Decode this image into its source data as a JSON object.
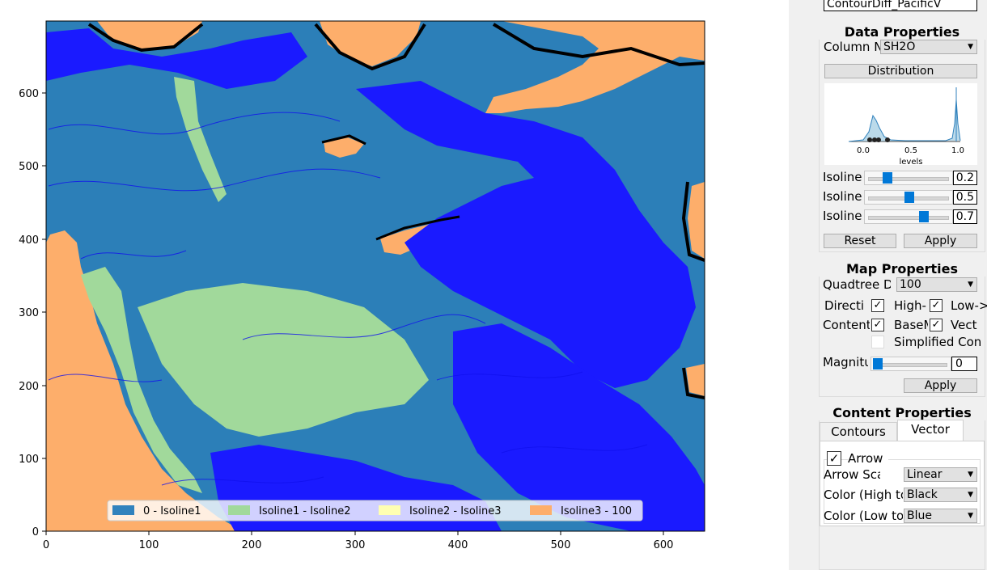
{
  "plot": {
    "x_ticks": [
      "0",
      "100",
      "200",
      "300",
      "400",
      "500",
      "600"
    ],
    "y_ticks": [
      "0",
      "100",
      "200",
      "300",
      "400",
      "500",
      "600"
    ],
    "legend": [
      {
        "label": "0 - Isoline1",
        "color": "#3182bd"
      },
      {
        "label": "Isoline1 - Isoline2",
        "color": "#a1d99b"
      },
      {
        "label": "Isoline2 - Isoline3",
        "color": "#ffffb2"
      },
      {
        "label": "Isoline3 - 100",
        "color": "#fdae6b"
      }
    ],
    "contour_color": "#1010ee"
  },
  "panel": {
    "top_combo": "ContourDiff_PacificV",
    "data_properties": {
      "title": "Data Properties",
      "column_label": "Column N",
      "column_value": "SH2O",
      "distribution_button": "Distribution",
      "dist_ticks": [
        "0.0",
        "0.5",
        "1.0"
      ],
      "dist_xlabel": "levels",
      "isolines": [
        {
          "label": "Isoline",
          "value": "0.2",
          "fraction": 0.2
        },
        {
          "label": "Isoline",
          "value": "0.5",
          "fraction": 0.5
        },
        {
          "label": "Isoline",
          "value": "0.7",
          "fraction": 0.7
        }
      ],
      "reset_button": "Reset",
      "apply_button": "Apply"
    },
    "map_properties": {
      "title": "Map Properties",
      "quadtree_label": "Quadtree D",
      "quadtree_value": "100",
      "direction_label": "Directi",
      "high_label": "High-",
      "low_label": "Low->",
      "content_label": "Content",
      "basemap_label": "BaseM",
      "vector_label": "Vecto",
      "simplified_label": "Simplified Con",
      "magnitude_label": "Magnitu",
      "magnitude_value": "0",
      "magnitude_fraction": 0.0,
      "apply_button": "Apply"
    },
    "content_properties": {
      "title": "Content Properties",
      "tabs": [
        "Contours",
        "Vector"
      ],
      "arrow_label": "Arrow",
      "arrow_scale_label": "Arrow Sca",
      "arrow_scale_value": "Linear",
      "color_high_label": "Color (High to",
      "color_high_value": "Black",
      "color_low_label": "Color (Low to",
      "color_low_value": "Blue"
    }
  }
}
